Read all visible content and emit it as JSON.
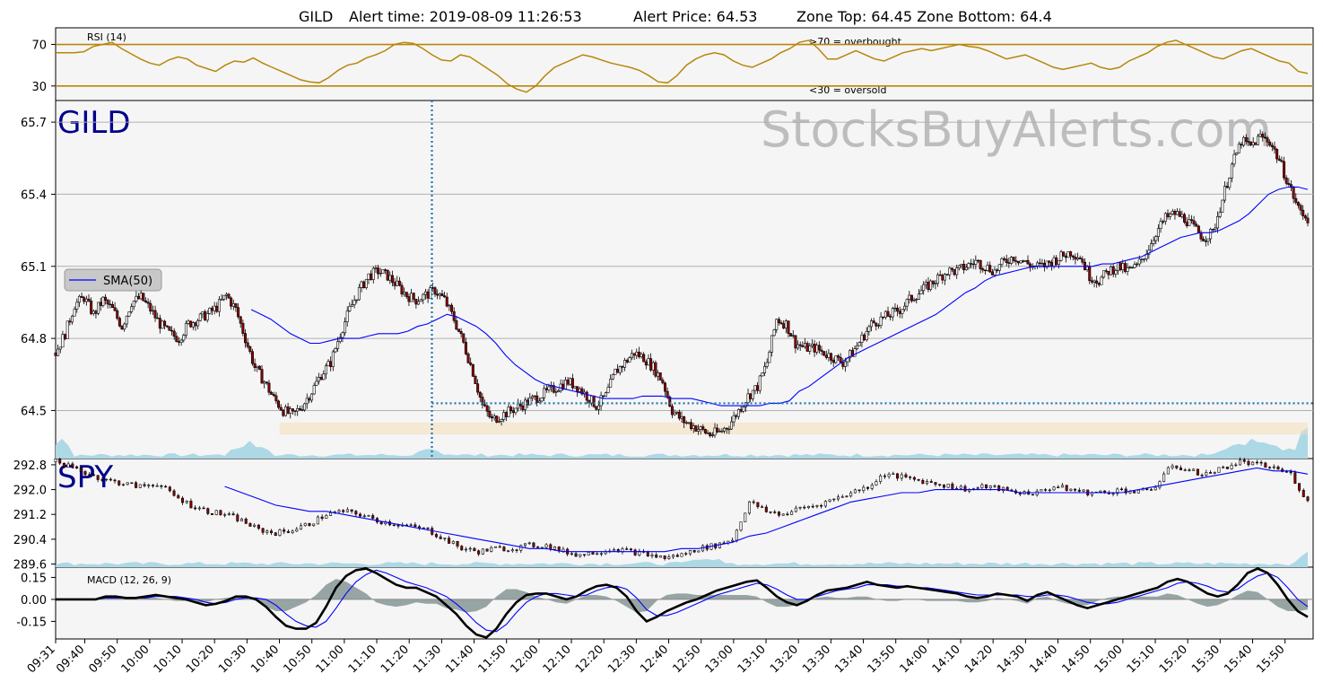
{
  "header": {
    "symbol": "GILD",
    "alert_time": "Alert time: 2019-08-09 11:26:53",
    "alert_price": "Alert Price: 64.53",
    "zone": "Zone Top: 64.45  Zone Bottom: 64.4"
  },
  "watermark": "StocksBuyAlerts.com",
  "colors": {
    "panel_bg": "#f5f5f5",
    "rsi_line": "#b8860b",
    "sma": "#0000ff",
    "volume": "#add8e6",
    "alert_marker": "#1f77b4",
    "zone": "#f5deb3",
    "ticker_label": "#00008b",
    "macd_hist": "#7f9090",
    "candle_up": "#ffffff",
    "candle_down": "#8b0000"
  },
  "chart_data": [
    {
      "id": "rsi",
      "type": "line",
      "label": "RSI (14)",
      "yticks": [
        70,
        30
      ],
      "ylim": [
        16,
        86
      ],
      "levels": [
        70,
        30
      ],
      "annotations": [
        ">70 = overbought",
        "<30 = oversold"
      ],
      "series": [
        {
          "name": "RSI (14)",
          "sampled_values": [
            62,
            62,
            62,
            63,
            68,
            70,
            72,
            66,
            61,
            56,
            52,
            50,
            55,
            58,
            56,
            50,
            47,
            44,
            50,
            54,
            53,
            57,
            52,
            48,
            44,
            40,
            36,
            34,
            33,
            38,
            45,
            50,
            52,
            57,
            60,
            64,
            70,
            72,
            71,
            66,
            60,
            55,
            54,
            60,
            58,
            52,
            46,
            40,
            32,
            27,
            24,
            30,
            40,
            48,
            52,
            56,
            60,
            58,
            55,
            52,
            50,
            48,
            45,
            40,
            34,
            33,
            40,
            50,
            56,
            60,
            62,
            60,
            54,
            50,
            48,
            52,
            56,
            62,
            66,
            72,
            74,
            66,
            56,
            56,
            60,
            64,
            60,
            56,
            54,
            58,
            62,
            64,
            66,
            64,
            66,
            68,
            70,
            68,
            67,
            64,
            60,
            56,
            58,
            60,
            56,
            52,
            48,
            46,
            48,
            50,
            52,
            48,
            46,
            48,
            54,
            58,
            62,
            68,
            72,
            74,
            70,
            66,
            62,
            58,
            56,
            60,
            64,
            66,
            62,
            58,
            54,
            52,
            44,
            42
          ]
        }
      ],
      "time_range": [
        "09:31",
        "15:57"
      ]
    },
    {
      "id": "gild",
      "type": "candlestick",
      "title": "GILD",
      "yticks": [
        65.7,
        65.4,
        65.1,
        64.8,
        64.5
      ],
      "ylim": [
        64.3,
        65.79
      ],
      "alert_time": "11:27",
      "alert_price": 64.53,
      "zone": {
        "top": 64.45,
        "bottom": 64.4,
        "from": "10:40",
        "to": "15:57"
      },
      "legend": {
        "label": "SMA(50)",
        "position": "left"
      },
      "close_sampled": [
        64.74,
        64.82,
        64.94,
        64.97,
        64.9,
        64.96,
        64.92,
        64.85,
        64.95,
        64.97,
        64.92,
        64.86,
        64.82,
        64.8,
        64.86,
        64.88,
        64.9,
        64.93,
        64.98,
        64.92,
        64.8,
        64.68,
        64.62,
        64.55,
        64.5,
        64.48,
        64.52,
        64.58,
        64.65,
        64.7,
        64.82,
        64.92,
        65.0,
        65.06,
        65.08,
        65.06,
        65.02,
        64.98,
        64.96,
        64.98,
        65.0,
        64.96,
        64.88,
        64.78,
        64.66,
        64.52,
        64.46,
        64.48,
        64.5,
        64.52,
        64.54,
        64.56,
        64.58,
        64.6,
        64.62,
        64.6,
        64.56,
        64.52,
        64.56,
        64.66,
        64.7,
        64.74,
        64.72,
        64.68,
        64.62,
        64.5,
        64.46,
        64.44,
        64.42,
        64.4,
        64.41,
        64.44,
        64.5,
        64.56,
        64.6,
        64.7,
        64.88,
        64.86,
        64.78,
        64.76,
        64.76,
        64.74,
        64.72,
        64.7,
        64.74,
        64.8,
        64.86,
        64.88,
        64.9,
        64.92,
        64.96,
        64.99,
        65.02,
        65.05,
        65.08,
        65.08,
        65.1,
        65.12,
        65.1,
        65.08,
        65.12,
        65.14,
        65.12,
        65.1,
        65.1,
        65.12,
        65.14,
        65.16,
        65.14,
        65.06,
        65.04,
        65.08,
        65.1,
        65.08,
        65.1,
        65.16,
        65.24,
        65.3,
        65.32,
        65.3,
        65.26,
        65.22,
        65.24,
        65.38,
        65.52,
        65.62,
        65.6,
        65.64,
        65.62,
        65.54,
        65.44,
        65.34,
        65.3
      ],
      "sma50_sampled": [
        null,
        null,
        null,
        null,
        null,
        null,
        null,
        null,
        null,
        null,
        null,
        null,
        null,
        null,
        null,
        null,
        null,
        null,
        null,
        null,
        64.92,
        64.9,
        64.88,
        64.85,
        64.82,
        64.8,
        64.78,
        64.78,
        64.79,
        64.8,
        64.8,
        64.8,
        64.81,
        64.82,
        64.82,
        64.82,
        64.83,
        64.85,
        64.86,
        64.88,
        64.9,
        64.89,
        64.87,
        64.85,
        64.82,
        64.78,
        64.73,
        64.69,
        64.66,
        64.63,
        64.61,
        64.6,
        64.59,
        64.58,
        64.57,
        64.56,
        64.55,
        64.55,
        64.55,
        64.55,
        64.56,
        64.56,
        64.56,
        64.55,
        64.55,
        64.55,
        64.54,
        64.53,
        64.52,
        64.52,
        64.52,
        64.52,
        64.52,
        64.53,
        64.53,
        64.54,
        64.58,
        64.6,
        64.63,
        64.66,
        64.69,
        64.72,
        64.74,
        64.76,
        64.78,
        64.8,
        64.82,
        64.84,
        64.86,
        64.88,
        64.9,
        64.93,
        64.96,
        64.99,
        65.01,
        65.04,
        65.06,
        65.07,
        65.08,
        65.09,
        65.1,
        65.1,
        65.1,
        65.1,
        65.1,
        65.1,
        65.1,
        65.11,
        65.11,
        65.12,
        65.13,
        65.14,
        65.16,
        65.18,
        65.2,
        65.22,
        65.23,
        65.24,
        65.24,
        65.25,
        65.27,
        65.29,
        65.32,
        65.36,
        65.4,
        65.42,
        65.43,
        65.43,
        65.42
      ]
    },
    {
      "id": "spy",
      "type": "candlestick",
      "title": "SPY",
      "yticks": [
        292.8,
        292.0,
        291.2,
        290.4,
        289.6
      ],
      "ylim": [
        289.5,
        293.0
      ],
      "close_sampled": [
        292.9,
        292.7,
        292.5,
        292.3,
        292.2,
        292.1,
        292.2,
        291.8,
        291.5,
        291.3,
        291.2,
        291.0,
        290.7,
        290.6,
        290.7,
        290.9,
        291.2,
        291.3,
        291.2,
        291.0,
        290.9,
        290.8,
        290.7,
        290.4,
        290.1,
        290.0,
        290.1,
        290.1,
        290.2,
        290.2,
        290.0,
        289.9,
        290.0,
        290.1,
        290.0,
        289.9,
        289.8,
        289.9,
        290.1,
        290.2,
        290.4,
        291.6,
        291.3,
        291.2,
        291.4,
        291.5,
        291.7,
        291.9,
        292.1,
        292.5,
        292.4,
        292.3,
        292.2,
        292.1,
        292.0,
        292.1,
        292.0,
        291.9,
        291.9,
        292.1,
        292.0,
        291.9,
        291.9,
        292.0,
        291.9,
        292.1,
        292.8,
        292.6,
        292.5,
        292.7,
        292.9,
        292.8,
        292.7,
        292.5,
        291.6
      ],
      "sma50_sampled": [
        null,
        null,
        null,
        null,
        null,
        null,
        null,
        null,
        null,
        null,
        292.1,
        291.9,
        291.7,
        291.5,
        291.4,
        291.3,
        291.3,
        291.2,
        291.1,
        291.0,
        290.9,
        290.8,
        290.7,
        290.6,
        290.5,
        290.4,
        290.3,
        290.2,
        290.1,
        290.1,
        290.0,
        290.0,
        290.0,
        290.0,
        290.0,
        290.0,
        290.0,
        290.1,
        290.1,
        290.2,
        290.3,
        290.5,
        290.6,
        290.8,
        291.0,
        291.2,
        291.4,
        291.6,
        291.7,
        291.8,
        291.9,
        291.9,
        292.0,
        292.0,
        292.0,
        292.0,
        292.0,
        291.9,
        291.9,
        291.9,
        291.9,
        291.9,
        291.9,
        291.9,
        292.0,
        292.1,
        292.2,
        292.3,
        292.4,
        292.5,
        292.6,
        292.7,
        292.6,
        292.6,
        292.5
      ]
    },
    {
      "id": "macd",
      "type": "line",
      "label": "MACD (12, 26, 9)",
      "yticks": [
        0.15,
        0.0,
        -0.15
      ],
      "ylim": [
        -0.27,
        0.22
      ],
      "series": [
        {
          "name": "MACD",
          "sampled_values": [
            0,
            0,
            0,
            0,
            0,
            0.02,
            0.02,
            0.01,
            0.01,
            0.02,
            0.03,
            0.02,
            0.01,
            0,
            -0.02,
            -0.04,
            -0.03,
            -0.01,
            0.02,
            0.02,
            0,
            -0.05,
            -0.12,
            -0.18,
            -0.2,
            -0.2,
            -0.16,
            -0.05,
            0.08,
            0.16,
            0.2,
            0.21,
            0.18,
            0.14,
            0.1,
            0.08,
            0.08,
            0.05,
            0.02,
            -0.04,
            -0.1,
            -0.18,
            -0.24,
            -0.26,
            -0.2,
            -0.1,
            -0.02,
            0.03,
            0.04,
            0.04,
            0.02,
            0,
            0.02,
            0.06,
            0.09,
            0.1,
            0.08,
            0.02,
            -0.08,
            -0.15,
            -0.12,
            -0.08,
            -0.05,
            -0.02,
            0,
            0.03,
            0.06,
            0.08,
            0.1,
            0.12,
            0.13,
            0.08,
            0.02,
            -0.02,
            -0.04,
            -0.01,
            0.03,
            0.06,
            0.07,
            0.08,
            0.1,
            0.12,
            0.1,
            0.09,
            0.08,
            0.09,
            0.08,
            0.07,
            0.06,
            0.05,
            0.04,
            0.02,
            0.01,
            0.02,
            0.04,
            0.03,
            0.02,
            -0.01,
            0.03,
            0.05,
            0.02,
            -0.01,
            -0.04,
            -0.06,
            -0.04,
            -0.02,
            0,
            0.02,
            0.04,
            0.06,
            0.08,
            0.12,
            0.14,
            0.12,
            0.08,
            0.04,
            0.02,
            0.04,
            0.1,
            0.18,
            0.21,
            0.18,
            0.1,
            0,
            -0.08,
            -0.12
          ]
        },
        {
          "name": "Signal",
          "sampled_values": [
            0,
            0,
            0,
            0,
            0,
            0.01,
            0.01,
            0.01,
            0.01,
            0.01,
            0.02,
            0.02,
            0.02,
            0.01,
            0,
            -0.02,
            -0.03,
            -0.02,
            0,
            0.01,
            0.01,
            0,
            -0.04,
            -0.1,
            -0.15,
            -0.18,
            -0.19,
            -0.15,
            -0.06,
            0.04,
            0.12,
            0.17,
            0.2,
            0.18,
            0.15,
            0.12,
            0.1,
            0.08,
            0.05,
            0.02,
            -0.03,
            -0.09,
            -0.16,
            -0.21,
            -0.22,
            -0.17,
            -0.09,
            -0.02,
            0.02,
            0.04,
            0.04,
            0.03,
            0.02,
            0.03,
            0.06,
            0.08,
            0.09,
            0.07,
            0.01,
            -0.07,
            -0.11,
            -0.11,
            -0.09,
            -0.06,
            -0.03,
            0,
            0.03,
            0.05,
            0.07,
            0.09,
            0.11,
            0.1,
            0.07,
            0.03,
            0,
            0,
            0.02,
            0.04,
            0.06,
            0.07,
            0.08,
            0.1,
            0.1,
            0.1,
            0.09,
            0.09,
            0.08,
            0.08,
            0.07,
            0.06,
            0.05,
            0.04,
            0.03,
            0.03,
            0.03,
            0.03,
            0.03,
            0.02,
            0.02,
            0.03,
            0.03,
            0.02,
            0,
            -0.02,
            -0.03,
            -0.03,
            -0.02,
            0,
            0.02,
            0.04,
            0.06,
            0.08,
            0.11,
            0.12,
            0.11,
            0.09,
            0.06,
            0.05,
            0.07,
            0.12,
            0.16,
            0.18,
            0.15,
            0.08,
            0,
            -0.05
          ]
        }
      ]
    }
  ],
  "x_axis": {
    "ticks": [
      "09:31",
      "09:40",
      "09:50",
      "10:00",
      "10:10",
      "10:20",
      "10:30",
      "10:40",
      "10:50",
      "11:00",
      "11:10",
      "11:20",
      "11:30",
      "11:40",
      "11:50",
      "12:00",
      "12:10",
      "12:20",
      "12:30",
      "12:40",
      "12:50",
      "13:00",
      "13:10",
      "13:20",
      "13:30",
      "13:40",
      "13:50",
      "14:00",
      "14:10",
      "14:20",
      "14:30",
      "14:40",
      "14:50",
      "15:00",
      "15:10",
      "15:20",
      "15:30",
      "15:40",
      "15:50"
    ]
  }
}
